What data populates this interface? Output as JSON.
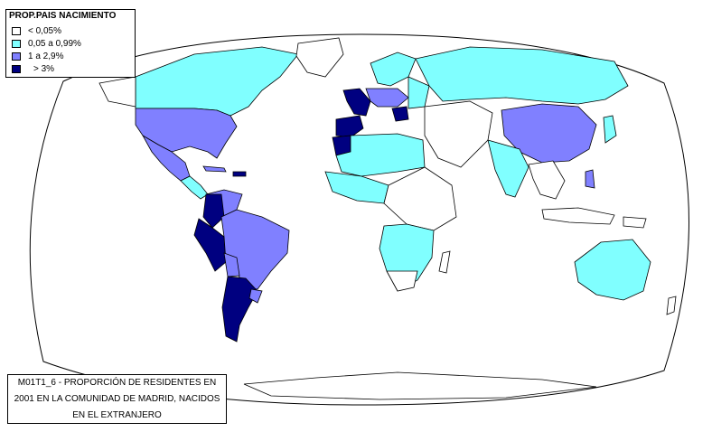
{
  "legend": {
    "title": "PROP.PAIS NACIMIENTO",
    "classes": [
      {
        "label": "<  0,05%",
        "color": "#ffffff"
      },
      {
        "label": "0,05 a 0,99%",
        "color": "#80ffff"
      },
      {
        "label": "1  a   2,9%",
        "color": "#8080ff"
      },
      {
        "label": "> 3%",
        "color": "#000080"
      }
    ]
  },
  "caption": {
    "line1": "M01T1_6 - PROPORCIÓN DE RESIDENTES EN",
    "line2": "2001 EN LA COMUNIDAD DE MADRID, NACIDOS",
    "line3": "EN EL EXTRANJERO"
  },
  "colors": {
    "ocean": "#ffffff",
    "outline": "#000000"
  }
}
